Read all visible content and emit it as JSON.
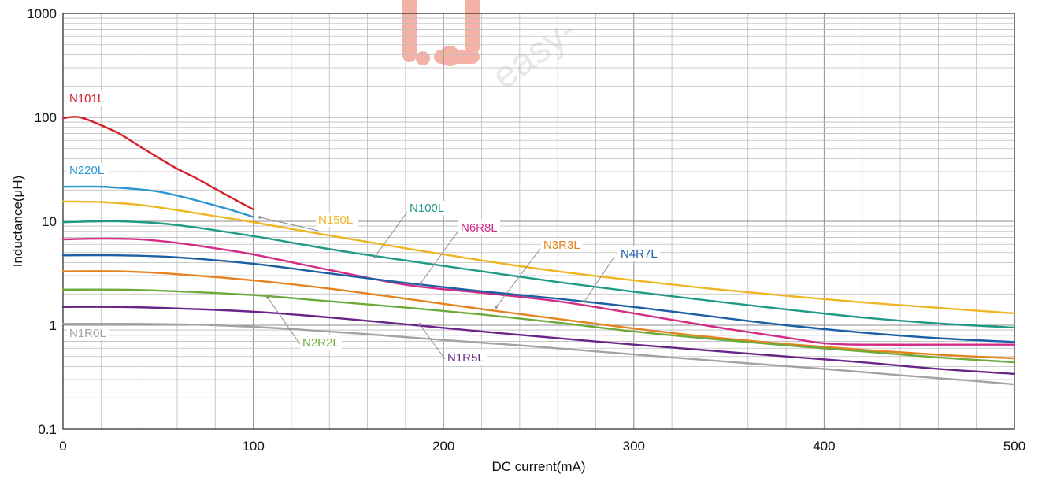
{
  "chart_data": {
    "type": "line",
    "title": "",
    "xlabel": "DC current(mA)",
    "ylabel": "Inductance(μH)",
    "xlim": [
      0,
      500
    ],
    "ylim": [
      0.1,
      1000
    ],
    "yscale": "log",
    "xticks": [
      "0",
      "100",
      "200",
      "300",
      "400",
      "500"
    ],
    "yticks": [
      "0.1",
      "1",
      "10",
      "100",
      "1000"
    ],
    "grid": true,
    "watermark": "easy-",
    "series": [
      {
        "name": "N101L",
        "color": "#d3202a",
        "x": [
          0,
          5,
          10,
          20,
          30,
          40,
          50,
          60,
          70,
          80,
          90,
          100
        ],
        "y": [
          98,
          101,
          99,
          84,
          69,
          53,
          41,
          32,
          26,
          20.5,
          16.3,
          13
        ]
      },
      {
        "name": "N220L",
        "color": "#2b96d0",
        "x": [
          0,
          20,
          40,
          50,
          60,
          70,
          80,
          90,
          100
        ],
        "y": [
          21.5,
          21.5,
          20.3,
          19.3,
          17.7,
          15.9,
          14.2,
          12.6,
          11
        ]
      },
      {
        "name": "N150L",
        "color": "#f0b522",
        "x": [
          0,
          20,
          40,
          60,
          80,
          100,
          140,
          180,
          220,
          260,
          300,
          340,
          380,
          420,
          460,
          500
        ],
        "y": [
          15.5,
          15.3,
          14.4,
          12.8,
          11.2,
          9.8,
          7.3,
          5.5,
          4.2,
          3.3,
          2.7,
          2.25,
          1.92,
          1.66,
          1.47,
          1.3
        ]
      },
      {
        "name": "N100L",
        "color": "#1f9a86",
        "x": [
          0,
          30,
          60,
          100,
          140,
          180,
          220,
          260,
          300,
          340,
          380,
          420,
          460,
          500
        ],
        "y": [
          9.8,
          10,
          9.2,
          7.2,
          5.4,
          4.2,
          3.3,
          2.6,
          2.1,
          1.72,
          1.42,
          1.19,
          1.04,
          0.95
        ]
      },
      {
        "name": "N6R8L",
        "color": "#d42b86",
        "x": [
          0,
          20,
          40,
          60,
          80,
          100,
          140,
          180,
          220,
          260,
          300,
          340,
          380,
          400,
          420,
          460,
          500
        ],
        "y": [
          6.7,
          6.8,
          6.7,
          6.2,
          5.5,
          4.8,
          3.4,
          2.45,
          2.05,
          1.7,
          1.3,
          0.98,
          0.76,
          0.67,
          0.65,
          0.65,
          0.65
        ]
      },
      {
        "name": "N4R7L",
        "color": "#1b5fa6",
        "x": [
          0,
          30,
          60,
          100,
          140,
          180,
          220,
          260,
          300,
          340,
          380,
          420,
          460,
          500
        ],
        "y": [
          4.7,
          4.7,
          4.5,
          3.9,
          3.15,
          2.55,
          2.12,
          1.8,
          1.5,
          1.22,
          1.0,
          0.85,
          0.75,
          0.69
        ]
      },
      {
        "name": "N3R3L",
        "color": "#e58320",
        "x": [
          0,
          30,
          60,
          100,
          140,
          180,
          220,
          260,
          300,
          340,
          380,
          420,
          460,
          500
        ],
        "y": [
          3.3,
          3.3,
          3.1,
          2.7,
          2.25,
          1.8,
          1.43,
          1.15,
          0.93,
          0.77,
          0.66,
          0.58,
          0.52,
          0.48
        ]
      },
      {
        "name": "N2R2L",
        "color": "#6cab3a",
        "x": [
          0,
          30,
          60,
          100,
          140,
          180,
          220,
          260,
          300,
          340,
          380,
          420,
          460,
          500
        ],
        "y": [
          2.2,
          2.2,
          2.12,
          1.95,
          1.7,
          1.48,
          1.27,
          1.06,
          0.87,
          0.74,
          0.64,
          0.56,
          0.49,
          0.44
        ]
      },
      {
        "name": "N1R5L",
        "color": "#6a2488",
        "x": [
          0,
          30,
          60,
          100,
          140,
          180,
          220,
          260,
          300,
          340,
          380,
          420,
          460,
          500
        ],
        "y": [
          1.5,
          1.5,
          1.45,
          1.35,
          1.19,
          1.02,
          0.87,
          0.75,
          0.65,
          0.57,
          0.5,
          0.44,
          0.38,
          0.34
        ]
      },
      {
        "name": "N1R0L",
        "color": "#a3a3a3",
        "x": [
          0,
          40,
          80,
          120,
          160,
          200,
          240,
          280,
          320,
          360,
          400,
          440,
          480,
          500
        ],
        "y": [
          1.03,
          1.03,
          1.0,
          0.92,
          0.82,
          0.72,
          0.64,
          0.56,
          0.49,
          0.43,
          0.38,
          0.33,
          0.29,
          0.27
        ]
      }
    ]
  }
}
